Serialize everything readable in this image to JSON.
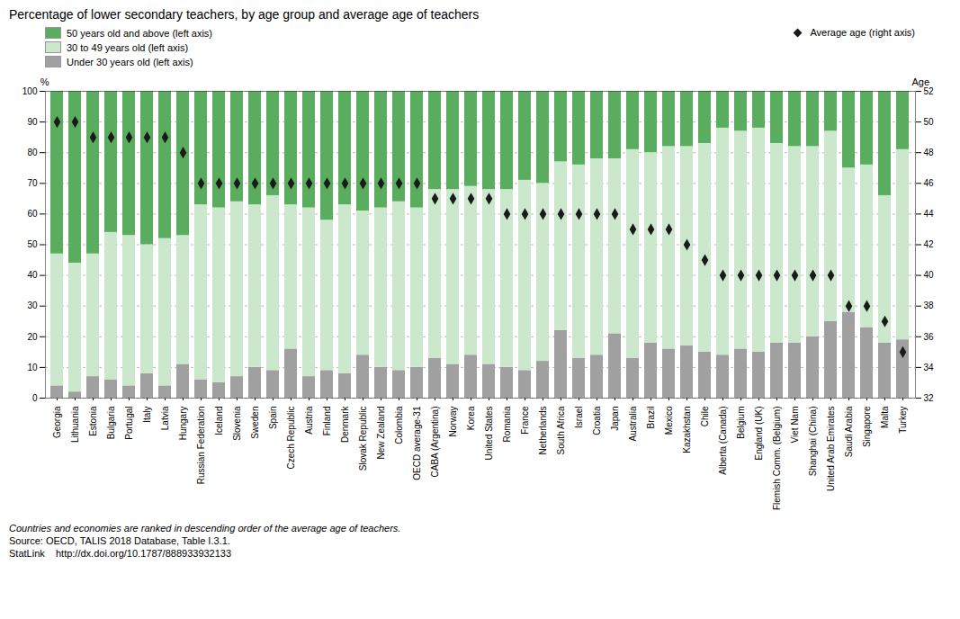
{
  "chart_data": {
    "type": "bar",
    "stacked": true,
    "title": "Percentage of lower secondary teachers, by age group and average age of teachers",
    "categories": [
      "Georgia",
      "Lithuania",
      "Estonia",
      "Bulgaria",
      "Portugal",
      "Italy",
      "Latvia",
      "Hungary",
      "Russian Federation",
      "Iceland",
      "Slovenia",
      "Sweden",
      "Spain",
      "Czech Republic",
      "Austria",
      "Finland",
      "Denmark",
      "Slovak Republic",
      "New Zealand",
      "Colombia",
      "OECD average-31",
      "CABA (Argentina)",
      "Norway",
      "Korea",
      "United States",
      "Romania",
      "France",
      "Netherlands",
      "South Africa",
      "Israel",
      "Croatia",
      "Japan",
      "Australia",
      "Brazil",
      "Mexico",
      "Kazakhstan",
      "Chile",
      "Alberta (Canada)",
      "Belgium",
      "England (UK)",
      "Flemish Comm. (Belgium)",
      "Viet Nam",
      "Shanghai (China)",
      "United Arab Emirates",
      "Saudi Arabia",
      "Singapore",
      "Malta",
      "Turkey"
    ],
    "series": [
      {
        "name": "Under 30 years old (left axis)",
        "color": "#a0a0a0",
        "values": [
          4,
          2,
          7,
          6,
          4,
          8,
          4,
          11,
          6,
          5,
          7,
          10,
          9,
          16,
          7,
          9,
          8,
          14,
          10,
          9,
          10,
          13,
          11,
          14,
          11,
          10,
          9,
          12,
          22,
          13,
          14,
          21,
          13,
          18,
          16,
          17,
          15,
          14,
          16,
          15,
          18,
          18,
          20,
          25,
          28,
          23,
          18,
          19
        ]
      },
      {
        "name": "30 to 49 years old (left axis)",
        "color": "#cce8cc",
        "values": [
          43,
          42,
          40,
          48,
          49,
          42,
          48,
          42,
          57,
          57,
          57,
          53,
          57,
          47,
          55,
          49,
          55,
          47,
          52,
          55,
          52,
          55,
          57,
          55,
          57,
          58,
          62,
          58,
          55,
          63,
          64,
          57,
          68,
          62,
          66,
          65,
          68,
          74,
          71,
          73,
          65,
          64,
          62,
          62,
          47,
          53,
          48,
          62
        ]
      },
      {
        "name": "50 years old and above (left axis)",
        "color": "#5aad5e",
        "values": [
          53,
          56,
          53,
          46,
          47,
          50,
          48,
          47,
          37,
          38,
          36,
          37,
          34,
          37,
          38,
          42,
          37,
          39,
          38,
          36,
          38,
          32,
          32,
          31,
          32,
          32,
          29,
          30,
          23,
          24,
          22,
          22,
          19,
          20,
          18,
          18,
          17,
          12,
          13,
          12,
          17,
          18,
          18,
          13,
          25,
          24,
          34,
          19
        ]
      },
      {
        "name": "Average age (right axis)",
        "type": "scatter",
        "marker": "diamond",
        "color": "#1a1a1a",
        "axis": "y2",
        "values": [
          50,
          50,
          49,
          49,
          49,
          49,
          49,
          48,
          46,
          46,
          46,
          46,
          46,
          46,
          46,
          46,
          46,
          46,
          46,
          46,
          46,
          45,
          45,
          45,
          45,
          44,
          44,
          44,
          44,
          44,
          44,
          44,
          43,
          43,
          43,
          42,
          41,
          40,
          40,
          40,
          40,
          40,
          40,
          40,
          38,
          38,
          37,
          35
        ]
      }
    ],
    "ylabel": "%",
    "y2label": "Age",
    "ylim": [
      0,
      100
    ],
    "yticks": [
      0,
      10,
      20,
      30,
      40,
      50,
      60,
      70,
      80,
      90,
      100
    ],
    "y2lim": [
      32,
      52
    ],
    "y2ticks": [
      32,
      34,
      36,
      38,
      40,
      42,
      44,
      46,
      48,
      50,
      52
    ],
    "grid": true,
    "legend": "top",
    "annotations": [
      "Countries and economies are ranked in descending order of the average age of teachers.",
      "Source: OECD, TALIS 2018 Database, Table I.3.1.",
      "StatLink    http://dx.doi.org/10.1787/888933932133"
    ]
  }
}
